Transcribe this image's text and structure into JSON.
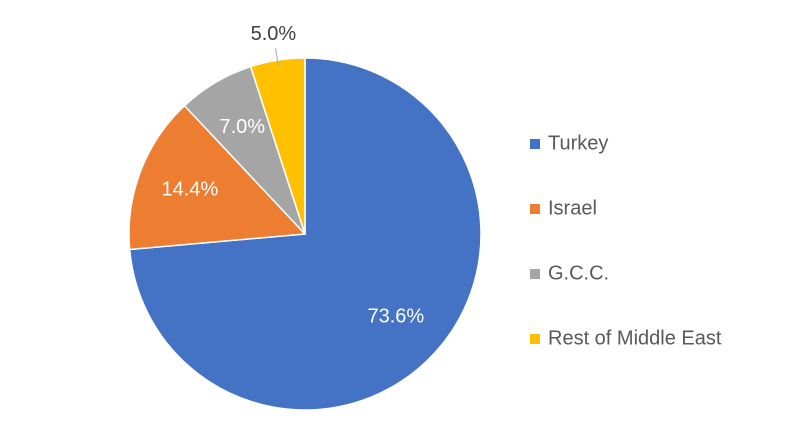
{
  "chart_data": {
    "type": "pie",
    "categories": [
      "Turkey",
      "Israel",
      "G.C.C.",
      "Rest of Middle East"
    ],
    "values": [
      73.6,
      14.4,
      7.0,
      5.0
    ],
    "value_labels": [
      "73.6%",
      "14.4%",
      "7.0%",
      "5.0%"
    ],
    "colors": [
      "#4472c4",
      "#ed7d31",
      "#a5a5a5",
      "#ffc000"
    ],
    "legend": "right"
  }
}
